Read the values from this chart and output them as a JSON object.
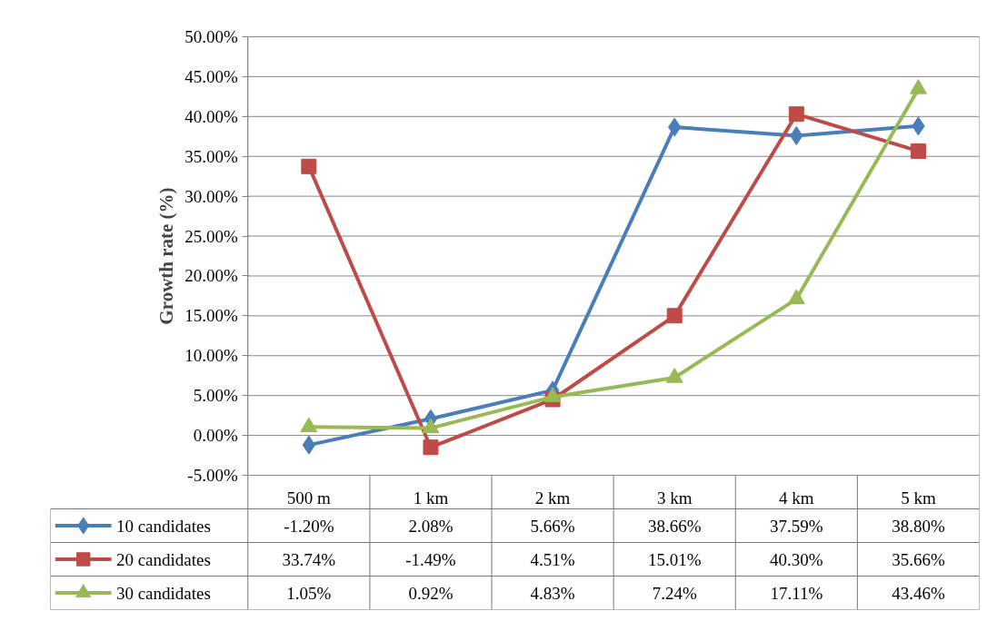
{
  "chart_data": {
    "type": "line",
    "ylabel": "Growth rate (%)",
    "categories": [
      "500 m",
      "1 km",
      "2 km",
      "3 km",
      "4 km",
      "5 km"
    ],
    "series": [
      {
        "name": "10 candidates",
        "color": "#4a7ebb",
        "marker": "diamond",
        "values": [
          -1.2,
          2.08,
          5.66,
          38.66,
          37.59,
          38.8
        ],
        "value_labels": [
          "-1.20%",
          "2.08%",
          "5.66%",
          "38.66%",
          "37.59%",
          "38.80%"
        ]
      },
      {
        "name": "20 candidates",
        "color": "#be4b48",
        "marker": "square",
        "values": [
          33.74,
          -1.49,
          4.51,
          15.01,
          40.3,
          35.66
        ],
        "value_labels": [
          "33.74%",
          "-1.49%",
          "4.51%",
          "15.01%",
          "40.30%",
          "35.66%"
        ]
      },
      {
        "name": "30 candidates",
        "color": "#98b954",
        "marker": "triangle",
        "values": [
          1.05,
          0.92,
          4.83,
          7.24,
          17.11,
          43.46
        ],
        "value_labels": [
          "1.05%",
          "0.92%",
          "4.83%",
          "7.24%",
          "17.11%",
          "43.46%"
        ]
      }
    ],
    "ylim": [
      -5,
      50
    ],
    "yticks": [
      {
        "value": -5,
        "label": "-5.00%"
      },
      {
        "value": 0,
        "label": "0.00%"
      },
      {
        "value": 5,
        "label": "5.00%"
      },
      {
        "value": 10,
        "label": "10.00%"
      },
      {
        "value": 15,
        "label": "15.00%"
      },
      {
        "value": 20,
        "label": "20.00%"
      },
      {
        "value": 25,
        "label": "25.00%"
      },
      {
        "value": 30,
        "label": "30.00%"
      },
      {
        "value": 35,
        "label": "35.00%"
      },
      {
        "value": 40,
        "label": "40.00%"
      },
      {
        "value": 45,
        "label": "45.00%"
      },
      {
        "value": 50,
        "label": "50.00%"
      }
    ],
    "grid": "y",
    "legend": "bottom",
    "line_style": "solid"
  }
}
